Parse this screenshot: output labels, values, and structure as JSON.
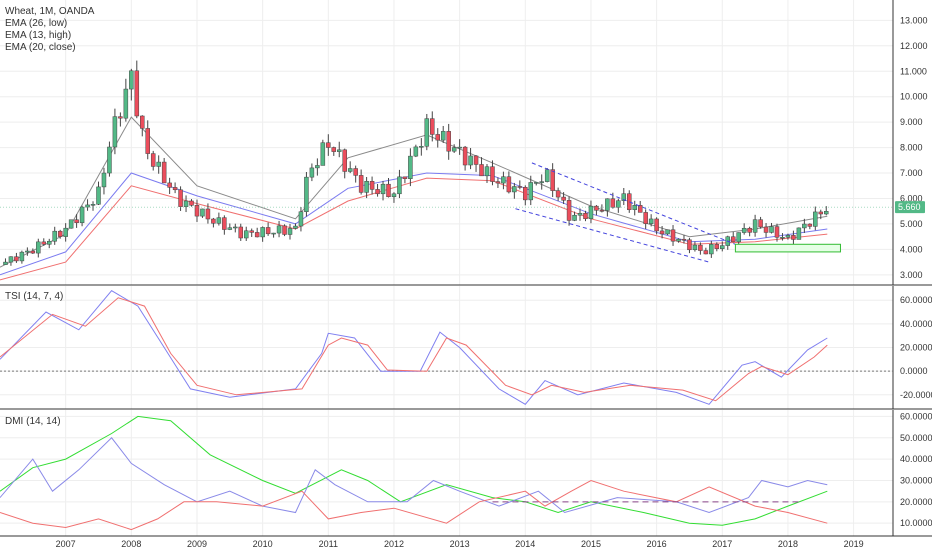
{
  "colors": {
    "up": "#53b987",
    "down": "#eb4d5c",
    "ema_low": "#7b7bf0",
    "ema_high": "#8a8a8a",
    "ema_close": "#f07070",
    "tsi": "#8080f0",
    "tsi_signal": "#f07070",
    "adx": "#33dd33",
    "di_plus": "#8a8ae8",
    "di_minus": "#f07070",
    "grid": "#eeeeee",
    "separator": "#333333",
    "price_tag_bg": "#53b987",
    "channel": "#4444dd",
    "zone_fill": "#e6ffe6",
    "zone_border": "#33bb33",
    "dashed_level": "#884488"
  },
  "chart_data": [
    {
      "type": "candlestick",
      "title": "Wheat, 1M, OANDA",
      "legend": [
        "EMA (26, low)",
        "EMA (13, high)",
        "EMA (20, close)"
      ],
      "ylim": [
        2.6,
        13.8
      ],
      "y_ticks": [
        "3.000",
        "4.000",
        "5.000",
        "6.000",
        "7.000",
        "8.000",
        "9.000",
        "10.000",
        "11.000",
        "12.000",
        "13.000"
      ],
      "last_price": "5.660",
      "approx_close": [
        {
          "x": 2006.0,
          "y": 3.4
        },
        {
          "x": 2006.5,
          "y": 4.0
        },
        {
          "x": 2007.0,
          "y": 4.8
        },
        {
          "x": 2007.5,
          "y": 6.2
        },
        {
          "x": 2007.7,
          "y": 8.5
        },
        {
          "x": 2008.0,
          "y": 10.8
        },
        {
          "x": 2008.2,
          "y": 8.0
        },
        {
          "x": 2008.7,
          "y": 6.0
        },
        {
          "x": 2009.2,
          "y": 5.2
        },
        {
          "x": 2009.7,
          "y": 4.6
        },
        {
          "x": 2010.5,
          "y": 4.8
        },
        {
          "x": 2010.7,
          "y": 7.0
        },
        {
          "x": 2011.0,
          "y": 8.2
        },
        {
          "x": 2011.5,
          "y": 6.5
        },
        {
          "x": 2012.0,
          "y": 6.2
        },
        {
          "x": 2012.5,
          "y": 8.8
        },
        {
          "x": 2013.0,
          "y": 7.8
        },
        {
          "x": 2013.5,
          "y": 6.8
        },
        {
          "x": 2014.0,
          "y": 6.2
        },
        {
          "x": 2014.3,
          "y": 7.0
        },
        {
          "x": 2014.7,
          "y": 5.2
        },
        {
          "x": 2015.5,
          "y": 6.0
        },
        {
          "x": 2016.0,
          "y": 4.8
        },
        {
          "x": 2016.7,
          "y": 3.9
        },
        {
          "x": 2017.0,
          "y": 4.2
        },
        {
          "x": 2017.5,
          "y": 5.0
        },
        {
          "x": 2018.0,
          "y": 4.4
        },
        {
          "x": 2018.6,
          "y": 5.66
        }
      ],
      "ema_low": [
        {
          "x": 2006.0,
          "y": 3.0
        },
        {
          "x": 2007.0,
          "y": 3.9
        },
        {
          "x": 2008.0,
          "y": 7.0
        },
        {
          "x": 2009.0,
          "y": 6.1
        },
        {
          "x": 2010.5,
          "y": 5.0
        },
        {
          "x": 2011.3,
          "y": 6.4
        },
        {
          "x": 2012.5,
          "y": 7.0
        },
        {
          "x": 2013.5,
          "y": 6.9
        },
        {
          "x": 2015.0,
          "y": 5.4
        },
        {
          "x": 2016.5,
          "y": 4.3
        },
        {
          "x": 2017.5,
          "y": 4.4
        },
        {
          "x": 2018.6,
          "y": 4.8
        }
      ],
      "ema_high": [
        {
          "x": 2006.0,
          "y": 3.3
        },
        {
          "x": 2007.0,
          "y": 4.6
        },
        {
          "x": 2008.0,
          "y": 9.2
        },
        {
          "x": 2009.0,
          "y": 6.5
        },
        {
          "x": 2010.5,
          "y": 5.2
        },
        {
          "x": 2011.3,
          "y": 7.6
        },
        {
          "x": 2012.5,
          "y": 8.5
        },
        {
          "x": 2013.5,
          "y": 7.4
        },
        {
          "x": 2015.0,
          "y": 5.7
        },
        {
          "x": 2016.5,
          "y": 4.5
        },
        {
          "x": 2017.5,
          "y": 4.8
        },
        {
          "x": 2018.6,
          "y": 5.3
        }
      ],
      "ema_close": [
        {
          "x": 2006.0,
          "y": 2.8
        },
        {
          "x": 2007.0,
          "y": 3.5
        },
        {
          "x": 2008.0,
          "y": 6.5
        },
        {
          "x": 2009.0,
          "y": 5.8
        },
        {
          "x": 2010.5,
          "y": 4.8
        },
        {
          "x": 2011.3,
          "y": 5.9
        },
        {
          "x": 2012.5,
          "y": 6.8
        },
        {
          "x": 2013.5,
          "y": 6.7
        },
        {
          "x": 2015.0,
          "y": 5.2
        },
        {
          "x": 2016.5,
          "y": 4.2
        },
        {
          "x": 2017.5,
          "y": 4.3
        },
        {
          "x": 2018.6,
          "y": 4.6
        }
      ],
      "channel_upper": [
        {
          "x": 2014.1,
          "y": 7.4
        },
        {
          "x": 2017.2,
          "y": 4.2
        }
      ],
      "channel_lower": [
        {
          "x": 2013.85,
          "y": 5.6
        },
        {
          "x": 2016.8,
          "y": 3.5
        }
      ],
      "zone": {
        "x0": 2017.2,
        "x1": 2018.8,
        "y0": 3.9,
        "y1": 4.2
      }
    },
    {
      "type": "line",
      "title": "TSI (14, 7, 4)",
      "ylim": [
        -32,
        72
      ],
      "y_ticks": [
        "60.0000",
        "40.0000",
        "20.0000",
        "0.0000",
        "-20.0000"
      ],
      "zero_line": 0,
      "series": [
        {
          "key": "tsi",
          "points": [
            {
              "x": 2006.0,
              "y": 10
            },
            {
              "x": 2006.7,
              "y": 50
            },
            {
              "x": 2007.2,
              "y": 35
            },
            {
              "x": 2007.7,
              "y": 68
            },
            {
              "x": 2008.1,
              "y": 55
            },
            {
              "x": 2008.5,
              "y": 20
            },
            {
              "x": 2008.9,
              "y": -15
            },
            {
              "x": 2009.5,
              "y": -22
            },
            {
              "x": 2010.5,
              "y": -15
            },
            {
              "x": 2010.9,
              "y": 15
            },
            {
              "x": 2011.0,
              "y": 32
            },
            {
              "x": 2011.4,
              "y": 28
            },
            {
              "x": 2011.8,
              "y": 0
            },
            {
              "x": 2012.4,
              "y": 0
            },
            {
              "x": 2012.7,
              "y": 33
            },
            {
              "x": 2013.0,
              "y": 20
            },
            {
              "x": 2013.6,
              "y": -15
            },
            {
              "x": 2014.0,
              "y": -28
            },
            {
              "x": 2014.3,
              "y": -8
            },
            {
              "x": 2014.8,
              "y": -20
            },
            {
              "x": 2015.5,
              "y": -10
            },
            {
              "x": 2016.3,
              "y": -18
            },
            {
              "x": 2016.8,
              "y": -28
            },
            {
              "x": 2017.3,
              "y": 5
            },
            {
              "x": 2017.5,
              "y": 8
            },
            {
              "x": 2017.9,
              "y": -5
            },
            {
              "x": 2018.3,
              "y": 18
            },
            {
              "x": 2018.6,
              "y": 28
            }
          ]
        },
        {
          "key": "tsi_signal",
          "points": [
            {
              "x": 2006.0,
              "y": 12
            },
            {
              "x": 2006.8,
              "y": 48
            },
            {
              "x": 2007.3,
              "y": 38
            },
            {
              "x": 2007.8,
              "y": 62
            },
            {
              "x": 2008.2,
              "y": 55
            },
            {
              "x": 2008.6,
              "y": 15
            },
            {
              "x": 2009.0,
              "y": -12
            },
            {
              "x": 2009.6,
              "y": -20
            },
            {
              "x": 2010.6,
              "y": -15
            },
            {
              "x": 2011.0,
              "y": 22
            },
            {
              "x": 2011.2,
              "y": 28
            },
            {
              "x": 2011.6,
              "y": 22
            },
            {
              "x": 2011.9,
              "y": 1
            },
            {
              "x": 2012.5,
              "y": 0
            },
            {
              "x": 2012.8,
              "y": 28
            },
            {
              "x": 2013.1,
              "y": 22
            },
            {
              "x": 2013.7,
              "y": -12
            },
            {
              "x": 2014.1,
              "y": -20
            },
            {
              "x": 2014.4,
              "y": -12
            },
            {
              "x": 2014.9,
              "y": -18
            },
            {
              "x": 2015.6,
              "y": -12
            },
            {
              "x": 2016.4,
              "y": -16
            },
            {
              "x": 2016.9,
              "y": -25
            },
            {
              "x": 2017.4,
              "y": -2
            },
            {
              "x": 2017.6,
              "y": 4
            },
            {
              "x": 2018.0,
              "y": -3
            },
            {
              "x": 2018.4,
              "y": 12
            },
            {
              "x": 2018.6,
              "y": 22
            }
          ]
        }
      ]
    },
    {
      "type": "line",
      "title": "DMI (14, 14)",
      "ylim": [
        4,
        63
      ],
      "y_ticks": [
        "60.0000",
        "50.0000",
        "40.0000",
        "30.0000",
        "20.0000",
        "10.0000"
      ],
      "dashed_level": {
        "y": 20,
        "x0": 2013.5,
        "x1": 2018.2
      },
      "series": [
        {
          "key": "adx",
          "points": [
            {
              "x": 2006.0,
              "y": 25
            },
            {
              "x": 2006.5,
              "y": 36
            },
            {
              "x": 2007.0,
              "y": 40
            },
            {
              "x": 2007.7,
              "y": 52
            },
            {
              "x": 2008.1,
              "y": 60
            },
            {
              "x": 2008.6,
              "y": 58
            },
            {
              "x": 2009.2,
              "y": 42
            },
            {
              "x": 2010.0,
              "y": 30
            },
            {
              "x": 2010.5,
              "y": 24
            },
            {
              "x": 2011.2,
              "y": 35
            },
            {
              "x": 2011.6,
              "y": 30
            },
            {
              "x": 2012.1,
              "y": 20
            },
            {
              "x": 2012.8,
              "y": 28
            },
            {
              "x": 2013.5,
              "y": 22
            },
            {
              "x": 2014.0,
              "y": 20
            },
            {
              "x": 2014.5,
              "y": 15
            },
            {
              "x": 2015.0,
              "y": 20
            },
            {
              "x": 2015.8,
              "y": 15
            },
            {
              "x": 2016.5,
              "y": 10
            },
            {
              "x": 2017.0,
              "y": 9
            },
            {
              "x": 2017.5,
              "y": 12
            },
            {
              "x": 2018.0,
              "y": 18
            },
            {
              "x": 2018.6,
              "y": 25
            }
          ]
        },
        {
          "key": "di_plus",
          "points": [
            {
              "x": 2006.0,
              "y": 22
            },
            {
              "x": 2006.5,
              "y": 40
            },
            {
              "x": 2006.8,
              "y": 25
            },
            {
              "x": 2007.2,
              "y": 35
            },
            {
              "x": 2007.7,
              "y": 50
            },
            {
              "x": 2008.0,
              "y": 38
            },
            {
              "x": 2008.5,
              "y": 28
            },
            {
              "x": 2009.0,
              "y": 20
            },
            {
              "x": 2009.5,
              "y": 25
            },
            {
              "x": 2010.0,
              "y": 18
            },
            {
              "x": 2010.5,
              "y": 15
            },
            {
              "x": 2010.8,
              "y": 35
            },
            {
              "x": 2011.1,
              "y": 28
            },
            {
              "x": 2011.6,
              "y": 20
            },
            {
              "x": 2012.2,
              "y": 20
            },
            {
              "x": 2012.6,
              "y": 30
            },
            {
              "x": 2013.0,
              "y": 25
            },
            {
              "x": 2013.6,
              "y": 18
            },
            {
              "x": 2014.2,
              "y": 25
            },
            {
              "x": 2014.6,
              "y": 15
            },
            {
              "x": 2015.4,
              "y": 22
            },
            {
              "x": 2016.3,
              "y": 20
            },
            {
              "x": 2016.8,
              "y": 15
            },
            {
              "x": 2017.4,
              "y": 22
            },
            {
              "x": 2017.6,
              "y": 30
            },
            {
              "x": 2018.0,
              "y": 27
            },
            {
              "x": 2018.3,
              "y": 30
            },
            {
              "x": 2018.6,
              "y": 28
            }
          ]
        },
        {
          "key": "di_minus",
          "points": [
            {
              "x": 2006.0,
              "y": 15
            },
            {
              "x": 2006.5,
              "y": 10
            },
            {
              "x": 2007.0,
              "y": 8
            },
            {
              "x": 2007.5,
              "y": 12
            },
            {
              "x": 2008.0,
              "y": 7
            },
            {
              "x": 2008.4,
              "y": 12
            },
            {
              "x": 2008.8,
              "y": 20
            },
            {
              "x": 2009.3,
              "y": 20
            },
            {
              "x": 2010.0,
              "y": 18
            },
            {
              "x": 2010.6,
              "y": 25
            },
            {
              "x": 2011.0,
              "y": 12
            },
            {
              "x": 2011.5,
              "y": 15
            },
            {
              "x": 2012.0,
              "y": 17
            },
            {
              "x": 2012.8,
              "y": 10
            },
            {
              "x": 2013.3,
              "y": 20
            },
            {
              "x": 2014.0,
              "y": 25
            },
            {
              "x": 2014.3,
              "y": 18
            },
            {
              "x": 2014.7,
              "y": 25
            },
            {
              "x": 2015.0,
              "y": 30
            },
            {
              "x": 2015.5,
              "y": 25
            },
            {
              "x": 2016.3,
              "y": 20
            },
            {
              "x": 2016.8,
              "y": 27
            },
            {
              "x": 2017.5,
              "y": 18
            },
            {
              "x": 2018.0,
              "y": 15
            },
            {
              "x": 2018.6,
              "y": 10
            }
          ]
        }
      ]
    }
  ],
  "x_axis": {
    "xlim": [
      2006.0,
      2019.6
    ],
    "ticks": [
      {
        "value": 2007,
        "label": "2007"
      },
      {
        "value": 2008,
        "label": "2008"
      },
      {
        "value": 2009,
        "label": "2009"
      },
      {
        "value": 2010,
        "label": "2010"
      },
      {
        "value": 2011,
        "label": "2011"
      },
      {
        "value": 2012,
        "label": "2012"
      },
      {
        "value": 2013,
        "label": "2013"
      },
      {
        "value": 2014,
        "label": "2014"
      },
      {
        "value": 2015,
        "label": "2015"
      },
      {
        "value": 2016,
        "label": "2016"
      },
      {
        "value": 2017,
        "label": "2017"
      },
      {
        "value": 2018,
        "label": "2018"
      },
      {
        "value": 2019,
        "label": "2019"
      }
    ]
  }
}
